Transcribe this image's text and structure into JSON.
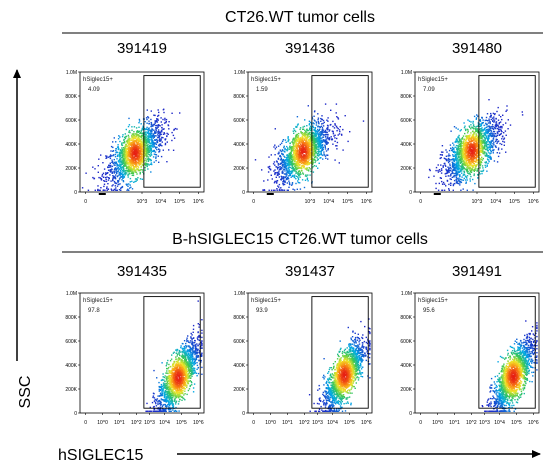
{
  "figure": {
    "y_axis_label": "SSC",
    "x_axis_label": "hSIGLEC15",
    "groups": [
      {
        "title": "CT26.WT tumor cells"
      },
      {
        "title": "B-hSIGLEC15 CT26.WT tumor cells"
      }
    ],
    "y_ticks": [
      "1.0M",
      "800K",
      "600K",
      "400K",
      "200K",
      "0"
    ],
    "x_ticks": [
      "0",
      "10^3",
      "10^4",
      "10^5",
      "10^6"
    ],
    "x_ticks_full": [
      "0",
      "10^0",
      "10^1",
      "10^2",
      "10^3",
      "10^4",
      "10^5",
      "10^6"
    ],
    "gate_name": "hSiglec15+"
  },
  "chart_data": [
    {
      "type": "scatter",
      "title": "391419",
      "group": "CT26.WT tumor cells",
      "gate": "hSiglec15+",
      "gate_percent": "4.09",
      "x_scale": "log (biexponential)",
      "ylim": [
        0,
        1000000
      ],
      "density_peak": {
        "x_log10": 2.6,
        "y": 330000
      }
    },
    {
      "type": "scatter",
      "title": "391436",
      "group": "CT26.WT tumor cells",
      "gate": "hSiglec15+",
      "gate_percent": "1.59",
      "x_scale": "log (biexponential)",
      "ylim": [
        0,
        1000000
      ],
      "density_peak": {
        "x_log10": 2.6,
        "y": 340000
      }
    },
    {
      "type": "scatter",
      "title": "391480",
      "group": "CT26.WT tumor cells",
      "gate": "hSiglec15+",
      "gate_percent": "7.09",
      "x_scale": "log (biexponential)",
      "ylim": [
        0,
        1000000
      ],
      "density_peak": {
        "x_log10": 2.7,
        "y": 350000
      }
    },
    {
      "type": "scatter",
      "title": "391435",
      "group": "B-hSIGLEC15 CT26.WT tumor cells",
      "gate": "hSiglec15+",
      "gate_percent": "97.8",
      "x_scale": "log",
      "ylim": [
        0,
        1000000
      ],
      "density_peak": {
        "x_log10": 4.9,
        "y": 300000
      }
    },
    {
      "type": "scatter",
      "title": "391437",
      "group": "B-hSIGLEC15 CT26.WT tumor cells",
      "gate": "hSiglec15+",
      "gate_percent": "93.9",
      "x_scale": "log",
      "ylim": [
        0,
        1000000
      ],
      "density_peak": {
        "x_log10": 4.8,
        "y": 320000
      }
    },
    {
      "type": "scatter",
      "title": "391491",
      "group": "B-hSIGLEC15 CT26.WT tumor cells",
      "gate": "hSiglec15+",
      "gate_percent": "95.6",
      "x_scale": "log",
      "ylim": [
        0,
        1000000
      ],
      "density_peak": {
        "x_log10": 4.9,
        "y": 310000
      }
    }
  ]
}
